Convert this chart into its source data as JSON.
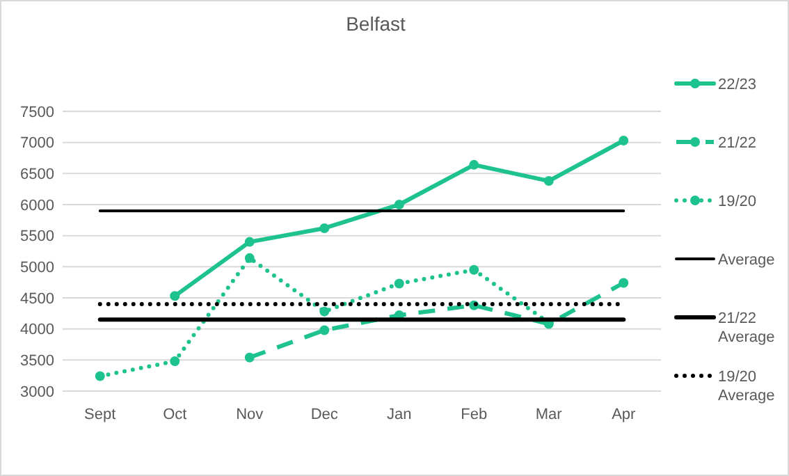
{
  "chart_data": {
    "type": "line",
    "title": "Belfast",
    "categories": [
      "Sept",
      "Oct",
      "Nov",
      "Dec",
      "Jan",
      "Feb",
      "Mar",
      "Apr"
    ],
    "series": [
      {
        "name": "22/23",
        "color": "#1dc28f",
        "line_style": "solid",
        "marker": "circle",
        "values": [
          null,
          4530,
          5400,
          5620,
          6000,
          6640,
          6380,
          7030
        ]
      },
      {
        "name": "21/22",
        "color": "#1dc28f",
        "line_style": "dashed",
        "marker": "circle",
        "values": [
          null,
          null,
          3540,
          3980,
          4220,
          4380,
          4080,
          4740
        ]
      },
      {
        "name": "19/20",
        "color": "#1dc28f",
        "line_style": "dotted",
        "marker": "circle",
        "values": [
          3240,
          3480,
          5140,
          4280,
          4730,
          4950,
          4100,
          null
        ]
      },
      {
        "name": "Average",
        "color": "#000000",
        "line_style": "solid",
        "marker": "none",
        "values": [
          5900,
          5900,
          5900,
          5900,
          5900,
          5900,
          5900,
          5900
        ]
      },
      {
        "name": "21/22 Average",
        "color": "#000000",
        "line_style": "solid",
        "marker": "none",
        "values": [
          4150,
          4150,
          4150,
          4150,
          4150,
          4150,
          4150,
          4150
        ]
      },
      {
        "name": "19/20 Average",
        "color": "#000000",
        "line_style": "dotted",
        "marker": "none",
        "values": [
          4400,
          4400,
          4400,
          4400,
          4400,
          4400,
          4400,
          4400
        ]
      }
    ],
    "ylim": [
      3000,
      7500
    ],
    "yticks": [
      3000,
      3500,
      4000,
      4500,
      5000,
      5500,
      6000,
      6500,
      7000,
      7500
    ],
    "grid": "y",
    "legend": "right"
  }
}
